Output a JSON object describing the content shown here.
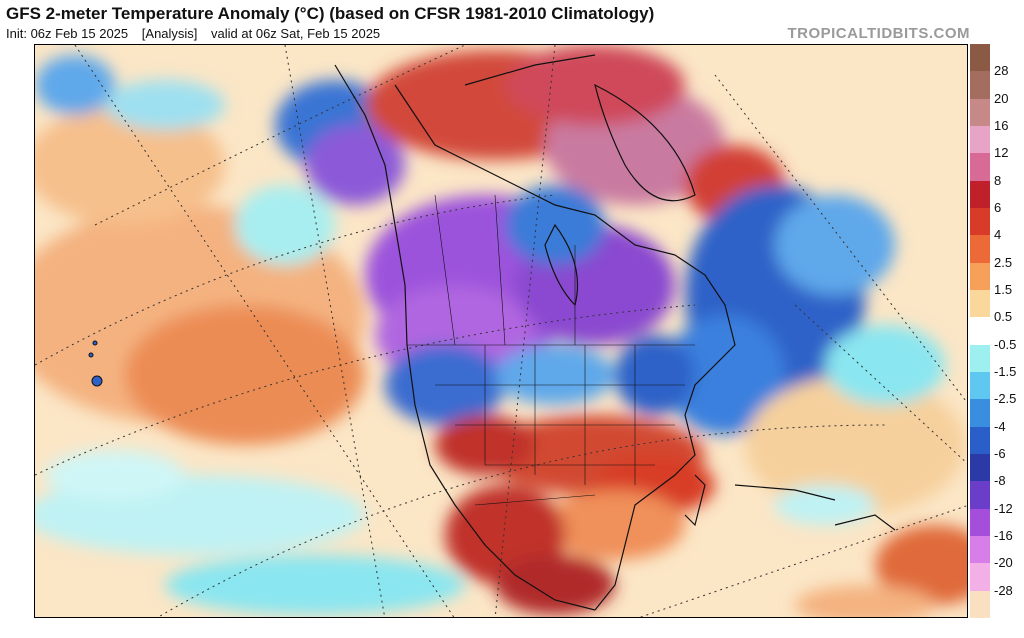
{
  "header": {
    "title": "GFS 2-meter Temperature Anomaly (°C) (based on CFSR 1981-2010 Climatology)",
    "init": "Init: 06z Feb 15 2025",
    "analysis": "[Analysis]",
    "valid": "valid at 06z Sat, Feb 15 2025",
    "brand": "TROPICALTIDBITS.COM"
  },
  "colorbar": {
    "labels": [
      "28",
      "20",
      "16",
      "12",
      "8",
      "6",
      "4",
      "2.5",
      "1.5",
      "0.5",
      "-0.5",
      "-1.5",
      "-2.5",
      "-4",
      "-6",
      "-8",
      "-12",
      "-16",
      "-20",
      "-28"
    ],
    "colors": [
      "#8a5a44",
      "#a36e60",
      "#c78888",
      "#e7a4c6",
      "#d86a96",
      "#c0202a",
      "#d83c28",
      "#ec6a38",
      "#f6a05a",
      "#fad79a",
      "#ffffff",
      "#9ef0f0",
      "#5ec8f0",
      "#3a8ee0",
      "#2a5ec8",
      "#2c3aa8",
      "#6a3ec8",
      "#a64edc",
      "#d77ee8",
      "#f2b0e6",
      "#f8e0c0"
    ]
  },
  "map": {
    "legend_name": "temperature-anomaly-map",
    "colors": {
      "ocean_warm": "#f6c99a",
      "ocean_light": "#fbe4c0",
      "deep_warm": "#e06a3a",
      "hot": "#c0302a",
      "very_hot": "#8e1c24",
      "arctic_pink": "#c97aa0",
      "cold_blue": "#2e62c8",
      "cool_blue": "#5ea8ea",
      "cyan": "#8ae6f0",
      "purple": "#9c52dc",
      "light_purple": "#c884ea",
      "land_line": "#111111",
      "grid_line": "#333333"
    }
  }
}
